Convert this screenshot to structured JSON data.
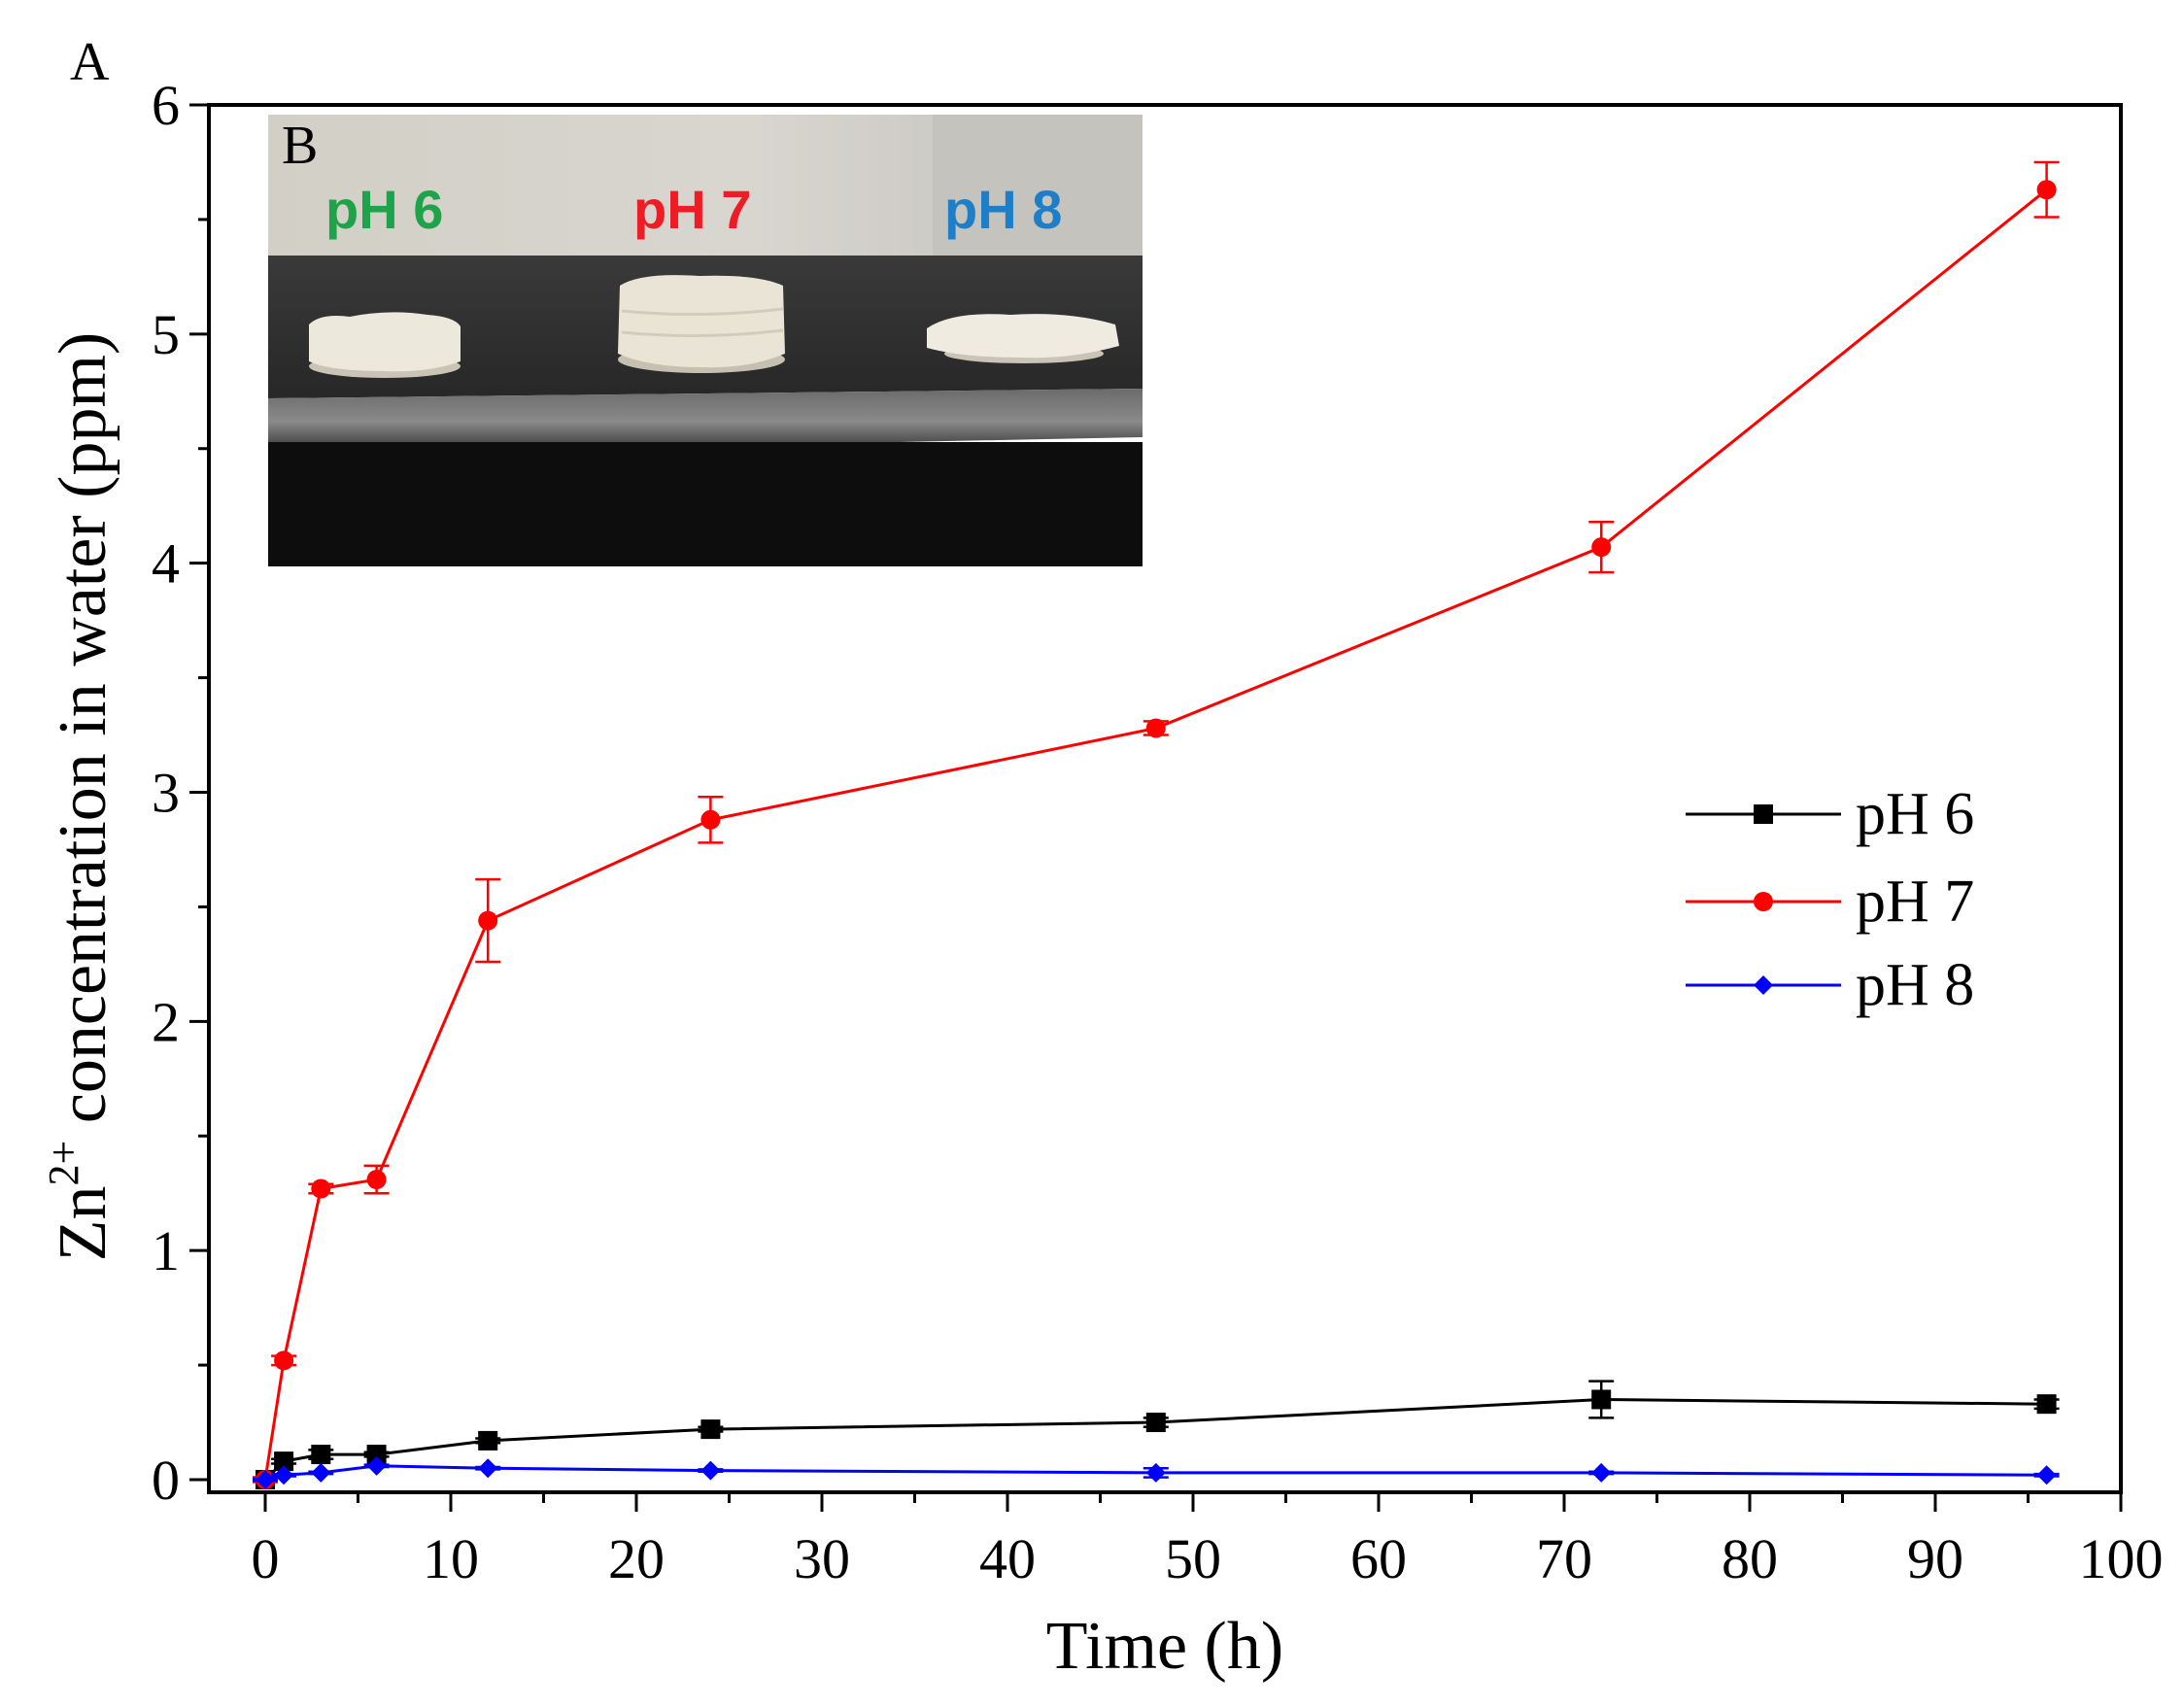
{
  "panel_labels": {
    "main": "A",
    "inset": "B"
  },
  "inset": {
    "labels": [
      {
        "text": "pH 6",
        "color": "#1fa34a"
      },
      {
        "text": "pH 7",
        "color": "#ee1c24"
      },
      {
        "text": "pH 8",
        "color": "#1e7fc8"
      }
    ]
  },
  "chart_data": {
    "type": "line",
    "title": "",
    "xlabel": "Time (h)",
    "ylabel_main": "Zn",
    "ylabel_sup": "2+",
    "ylabel_rest": " concentration in water (ppm)",
    "xlim": [
      0,
      100
    ],
    "ylim": [
      0,
      6
    ],
    "xticks": [
      0,
      10,
      20,
      30,
      40,
      50,
      60,
      70,
      80,
      90,
      100
    ],
    "yticks": [
      0,
      1,
      2,
      3,
      4,
      5,
      6
    ],
    "legend_position": "right-middle",
    "x": [
      0,
      1,
      3,
      6,
      12,
      24,
      48,
      72,
      96
    ],
    "series": [
      {
        "name": "pH 6",
        "color": "#000000",
        "marker": "square",
        "values": [
          0.0,
          0.08,
          0.11,
          0.11,
          0.17,
          0.22,
          0.25,
          0.35,
          0.33
        ],
        "errors": [
          0.01,
          0.01,
          0.02,
          0.01,
          0.01,
          0.01,
          0.02,
          0.08,
          0.02
        ]
      },
      {
        "name": "pH 7",
        "color": "#ff0000",
        "marker": "circle",
        "values": [
          0.0,
          0.52,
          1.27,
          1.31,
          2.44,
          2.88,
          3.28,
          4.07,
          5.63
        ],
        "errors": [
          0.01,
          0.02,
          0.02,
          0.06,
          0.18,
          0.1,
          0.03,
          0.11,
          0.12
        ]
      },
      {
        "name": "pH 8",
        "color": "#0000ff",
        "marker": "diamond",
        "values": [
          0.0,
          0.02,
          0.03,
          0.06,
          0.05,
          0.04,
          0.03,
          0.03,
          0.02
        ],
        "errors": [
          0.005,
          0.005,
          0.005,
          0.005,
          0.005,
          0.005,
          0.02,
          0.005,
          0.005
        ]
      }
    ]
  }
}
